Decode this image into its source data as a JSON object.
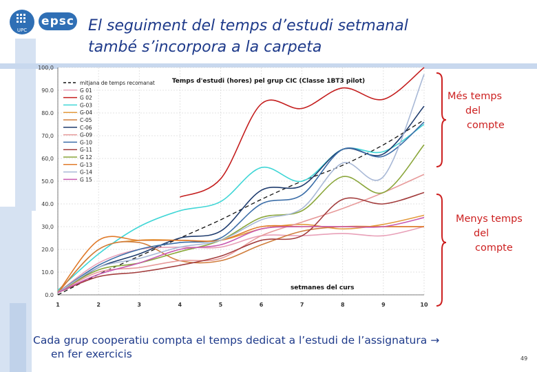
{
  "header": {
    "title_line1": "El seguiment del temps d’estudi setmanal",
    "title_line2": "també s’incorpora a la carpeta",
    "logos": {
      "upc": "UPC",
      "epsc": "epsc"
    }
  },
  "annotations": {
    "more": [
      "Més temps",
      "del",
      "compte"
    ],
    "less": [
      "Menys temps",
      "del",
      "compte"
    ]
  },
  "caption": {
    "line1": "Cada grup cooperatiu compta el temps dedicat a l’estudi de l’assignatura",
    "arrow": "→",
    "line2": "en fer exercicis"
  },
  "page_number": "49",
  "colors": {
    "title": "#1e3a8a",
    "accent_red": "#cc1f1f",
    "background_blue": "#c8d8ee"
  },
  "chart_data": {
    "type": "line",
    "title": "Temps d'estudi (hores) pel grup CIC (Classe 1BT3 pilot)",
    "xlabel": "setmanes del curs",
    "ylabel": "",
    "x": [
      1,
      2,
      3,
      4,
      5,
      6,
      7,
      8,
      9,
      10
    ],
    "x_tick_labels": [
      "1",
      "2",
      "3",
      "4",
      "5",
      "6",
      "7",
      "8",
      "9",
      "10"
    ],
    "y_tick_labels": [
      "0.0",
      "10.0",
      "20.0",
      "30,0",
      "40.0",
      "50.0",
      "60,0",
      "70,0",
      "80.0",
      "90.0",
      "100,0"
    ],
    "ylim": [
      0,
      100
    ],
    "xlim": [
      1,
      10
    ],
    "legend_position": "top-left",
    "series": [
      {
        "name": "mitjana de temps recomanat",
        "color": "#111111",
        "dashed": true,
        "values": [
          0,
          9,
          17,
          25,
          33,
          42,
          50,
          57,
          66,
          77
        ]
      },
      {
        "name": "G 01",
        "color": "#e8a0b8",
        "values": [
          1,
          14,
          20,
          21,
          21,
          26,
          26,
          27,
          26,
          30
        ]
      },
      {
        "name": "G 02",
        "color": "#c41e1e",
        "values": [
          null,
          null,
          null,
          43,
          51,
          84,
          82,
          91,
          86,
          100
        ]
      },
      {
        "name": "G-03",
        "color": "#3fd6d6",
        "values": [
          2,
          18,
          30,
          37,
          41,
          56,
          50,
          64,
          63,
          75
        ]
      },
      {
        "name": "G-04",
        "color": "#e39a3b",
        "values": [
          1,
          20,
          24,
          24,
          24,
          29,
          31,
          29,
          31,
          35
        ]
      },
      {
        "name": "C-05",
        "color": "#d07d3c",
        "values": [
          1,
          20,
          23,
          15,
          15,
          22,
          28,
          30,
          30,
          30
        ]
      },
      {
        "name": "C-06",
        "color": "#1f3c6e",
        "values": [
          1,
          12,
          18,
          25,
          28,
          46,
          48,
          64,
          62,
          83
        ]
      },
      {
        "name": "G-09",
        "color": "#e79a9a",
        "values": [
          1,
          10,
          12,
          15,
          16,
          26,
          32,
          38,
          45,
          53
        ]
      },
      {
        "name": "G-10",
        "color": "#3c6ea8",
        "values": [
          1,
          13,
          20,
          23,
          25,
          40,
          44,
          64,
          61,
          76
        ]
      },
      {
        "name": "G-11",
        "color": "#a23c3c",
        "values": [
          1,
          8,
          10,
          13,
          17,
          24,
          26,
          42,
          40,
          45
        ]
      },
      {
        "name": "G 12",
        "color": "#8aa63a",
        "values": [
          1,
          11,
          14,
          19,
          24,
          34,
          37,
          52,
          45,
          66
        ]
      },
      {
        "name": "G-13",
        "color": "#e07a2a",
        "values": [
          1,
          24,
          24,
          24,
          24,
          30,
          30,
          30,
          30,
          30
        ]
      },
      {
        "name": "G-14",
        "color": "#a8b8d6",
        "values": [
          1,
          12,
          16,
          21,
          24,
          33,
          38,
          58,
          52,
          97
        ]
      },
      {
        "name": "G 15",
        "color": "#c85ab0",
        "values": [
          1,
          9,
          14,
          20,
          22,
          29,
          30,
          30,
          30,
          34
        ]
      }
    ]
  }
}
